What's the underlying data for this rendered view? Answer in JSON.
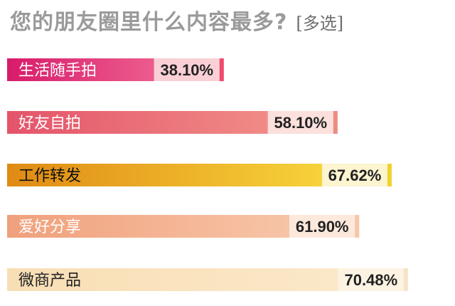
{
  "chart_data": {
    "type": "bar",
    "orientation": "horizontal",
    "title": "您的朋友圈里什么内容最多?",
    "subtitle": "[多选]",
    "categories": [
      "生活随手拍",
      "好友自拍",
      "工作转发",
      "爱好分享",
      "微商产品"
    ],
    "values": [
      38.1,
      58.1,
      67.62,
      61.9,
      70.48
    ],
    "value_labels": [
      "38.10%",
      "58.10%",
      "67.62%",
      "61.90%",
      "70.48%"
    ],
    "xlim": [
      0,
      100
    ],
    "grid": false,
    "legend": "none",
    "colors": {
      "bars": [
        "#d81b6a",
        "#e4546a",
        "#e08a14",
        "#f0a07c",
        "#f8deb4"
      ],
      "bar_ends": [
        "#ec5c8e",
        "#f08a86",
        "#f6d23a",
        "#f7c4a6",
        "#fbe8c8"
      ],
      "label_boxes": [
        "#fad0d6",
        "#fbe0dc",
        "#fdf4d0",
        "#fde9dc",
        "#fdf3e3"
      ],
      "label_box_ends": [
        "#ef4a6c",
        "#ef8a80",
        "#f2d22e",
        "#f4c8a8",
        "#f7e3c6"
      ],
      "category_text": [
        "#ffffff",
        "#ffffff",
        "#111111",
        "#ffffff",
        "#222222"
      ]
    }
  }
}
